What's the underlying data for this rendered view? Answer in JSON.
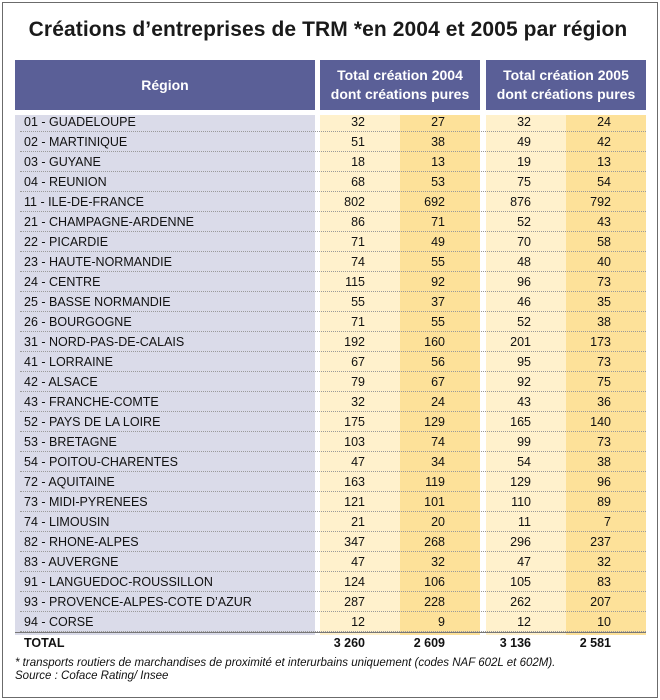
{
  "title": "Créations d’entreprises de TRM *en 2004 et 2005 par région",
  "header": {
    "region": "Région",
    "y2004_line1": "Total création 2004",
    "y2004_line2": "dont créations pures",
    "y2005_line1": "Total création 2005",
    "y2005_line2": "dont créations pures"
  },
  "rows": [
    {
      "region": "01 - GUADELOUPE",
      "t2004": "32",
      "p2004": "27",
      "t2005": "32",
      "p2005": "24"
    },
    {
      "region": "02 - MARTINIQUE",
      "t2004": "51",
      "p2004": "38",
      "t2005": "49",
      "p2005": "42"
    },
    {
      "region": "03 - GUYANE",
      "t2004": "18",
      "p2004": "13",
      "t2005": "19",
      "p2005": "13"
    },
    {
      "region": "04 - REUNION",
      "t2004": "68",
      "p2004": "53",
      "t2005": "75",
      "p2005": "54"
    },
    {
      "region": "11 - ILE-DE-FRANCE",
      "t2004": "802",
      "p2004": "692",
      "t2005": "876",
      "p2005": "792"
    },
    {
      "region": "21 - CHAMPAGNE-ARDENNE",
      "t2004": "86",
      "p2004": "71",
      "t2005": "52",
      "p2005": "43"
    },
    {
      "region": "22 - PICARDIE",
      "t2004": "71",
      "p2004": "49",
      "t2005": "70",
      "p2005": "58"
    },
    {
      "region": "23 - HAUTE-NORMANDIE",
      "t2004": "74",
      "p2004": "55",
      "t2005": "48",
      "p2005": "40"
    },
    {
      "region": "24 - CENTRE",
      "t2004": "115",
      "p2004": "92",
      "t2005": "96",
      "p2005": "73"
    },
    {
      "region": "25 - BASSE NORMANDIE",
      "t2004": "55",
      "p2004": "37",
      "t2005": "46",
      "p2005": "35"
    },
    {
      "region": "26 - BOURGOGNE",
      "t2004": "71",
      "p2004": "55",
      "t2005": "52",
      "p2005": "38"
    },
    {
      "region": "31 - NORD-PAS-DE-CALAIS",
      "t2004": "192",
      "p2004": "160",
      "t2005": "201",
      "p2005": "173"
    },
    {
      "region": "41 - LORRAINE",
      "t2004": "67",
      "p2004": "56",
      "t2005": "95",
      "p2005": "73"
    },
    {
      "region": "42 - ALSACE",
      "t2004": "79",
      "p2004": "67",
      "t2005": "92",
      "p2005": "75"
    },
    {
      "region": "43 - FRANCHE-COMTE",
      "t2004": "32",
      "p2004": "24",
      "t2005": "43",
      "p2005": "36"
    },
    {
      "region": "52 - PAYS DE LA LOIRE",
      "t2004": "175",
      "p2004": "129",
      "t2005": "165",
      "p2005": "140"
    },
    {
      "region": "53 - BRETAGNE",
      "t2004": "103",
      "p2004": "74",
      "t2005": "99",
      "p2005": "73"
    },
    {
      "region": "54 - POITOU-CHARENTES",
      "t2004": "47",
      "p2004": "34",
      "t2005": "54",
      "p2005": "38"
    },
    {
      "region": "72 - AQUITAINE",
      "t2004": "163",
      "p2004": "119",
      "t2005": "129",
      "p2005": "96"
    },
    {
      "region": "73 - MIDI-PYRENEES",
      "t2004": "121",
      "p2004": "101",
      "t2005": "110",
      "p2005": "89"
    },
    {
      "region": "74 - LIMOUSIN",
      "t2004": "21",
      "p2004": "20",
      "t2005": "11",
      "p2005": "7"
    },
    {
      "region": "82 - RHONE-ALPES",
      "t2004": "347",
      "p2004": "268",
      "t2005": "296",
      "p2005": "237"
    },
    {
      "region": "83 - AUVERGNE",
      "t2004": "47",
      "p2004": "32",
      "t2005": "47",
      "p2005": "32"
    },
    {
      "region": "91 - LANGUEDOC-ROUSSILLON",
      "t2004": "124",
      "p2004": "106",
      "t2005": "105",
      "p2005": "83"
    },
    {
      "region": "93 - PROVENCE-ALPES-COTE D’AZUR",
      "t2004": "287",
      "p2004": "228",
      "t2005": "262",
      "p2005": "207"
    },
    {
      "region": "94 - CORSE",
      "t2004": "12",
      "p2004": "9",
      "t2005": "12",
      "p2005": "10"
    }
  ],
  "total": {
    "label": "TOTAL",
    "t2004": "3 260",
    "p2004": "2 609",
    "t2005": "3 136",
    "p2005": "2 581"
  },
  "footnote": "* transports routiers de marchandises de proximité et interurbains uniquement (codes NAF 602L et 602M).",
  "source": "Source : Coface Rating/ Insee",
  "colors": {
    "header": "#5a5f97",
    "region_col": "#dadbe9",
    "light_col": "#fff1cc",
    "dark_col": "#fde199"
  }
}
